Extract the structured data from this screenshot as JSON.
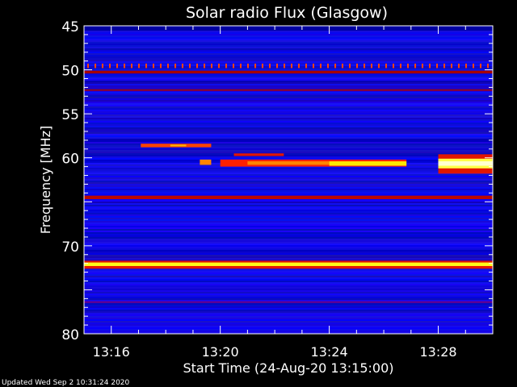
{
  "chart_data": {
    "type": "heatmap",
    "title": "Solar radio Flux (Glasgow)",
    "xlabel": "Start Time (24-Aug-20 13:15:00)",
    "ylabel": "Frequency [MHz]",
    "xlim": [
      "13:15:00",
      "13:30:00"
    ],
    "ylim": [
      45,
      80
    ],
    "y_inverted": true,
    "x_ticks": [
      "13:16",
      "13:20",
      "13:24",
      "13:28"
    ],
    "y_ticks": [
      "45",
      "50",
      "55",
      "60",
      "70",
      "80"
    ],
    "y_minor_tick_step_mhz": 1,
    "colormap": [
      "#0000ff",
      "#5a00b0",
      "#a00000",
      "#ff2000",
      "#ff9000",
      "#ffff00",
      "#ffffff"
    ],
    "background_intensity": 0.05,
    "features": [
      {
        "t_start": "13:15:00",
        "t_end": "13:30:00",
        "f_low": 49.3,
        "f_high": 49.8,
        "intensity": 0.55,
        "pattern": "dotted"
      },
      {
        "t_start": "13:15:00",
        "t_end": "13:30:00",
        "f_low": 50.1,
        "f_high": 50.4,
        "intensity": 0.35
      },
      {
        "t_start": "13:15:00",
        "t_end": "13:30:00",
        "f_low": 52.2,
        "f_high": 52.4,
        "intensity": 0.3
      },
      {
        "t_start": "13:15:00",
        "t_end": "13:30:00",
        "f_low": 64.3,
        "f_high": 64.7,
        "intensity": 0.38
      },
      {
        "t_start": "13:15:00",
        "t_end": "13:30:00",
        "f_low": 71.7,
        "f_high": 72.6,
        "intensity": 0.45
      },
      {
        "t_start": "13:15:00",
        "t_end": "13:30:00",
        "f_low": 71.9,
        "f_high": 72.3,
        "intensity": 0.85
      },
      {
        "t_start": "13:15:00",
        "t_end": "13:30:00",
        "f_low": 76.3,
        "f_high": 76.5,
        "intensity": 0.2
      },
      {
        "t_start": "13:17:05",
        "t_end": "13:19:40",
        "f_low": 58.4,
        "f_high": 58.8,
        "intensity": 0.55
      },
      {
        "t_start": "13:18:10",
        "t_end": "13:18:45",
        "f_low": 58.5,
        "f_high": 58.7,
        "intensity": 0.72
      },
      {
        "t_start": "13:20:30",
        "t_end": "13:22:20",
        "f_low": 59.5,
        "f_high": 59.8,
        "intensity": 0.45
      },
      {
        "t_start": "13:19:15",
        "t_end": "13:19:40",
        "f_low": 60.2,
        "f_high": 60.8,
        "intensity": 0.65
      },
      {
        "t_start": "13:20:00",
        "t_end": "13:26:50",
        "f_low": 60.2,
        "f_high": 61.0,
        "intensity": 0.5
      },
      {
        "t_start": "13:21:00",
        "t_end": "13:24:00",
        "f_low": 60.4,
        "f_high": 60.8,
        "intensity": 0.65
      },
      {
        "t_start": "13:24:00",
        "t_end": "13:26:50",
        "f_low": 60.4,
        "f_high": 60.9,
        "intensity": 0.8
      },
      {
        "t_start": "13:28:00",
        "t_end": "13:30:00",
        "f_low": 59.6,
        "f_high": 61.8,
        "intensity": 0.45
      },
      {
        "t_start": "13:28:00",
        "t_end": "13:30:00",
        "f_low": 60.1,
        "f_high": 61.2,
        "intensity": 0.88
      },
      {
        "t_start": "13:28:00",
        "t_end": "13:30:00",
        "f_low": 60.4,
        "f_high": 60.9,
        "intensity": 0.97
      }
    ]
  },
  "footer": {
    "updated": "Updated Wed Sep  2 10:31:24 2020"
  }
}
